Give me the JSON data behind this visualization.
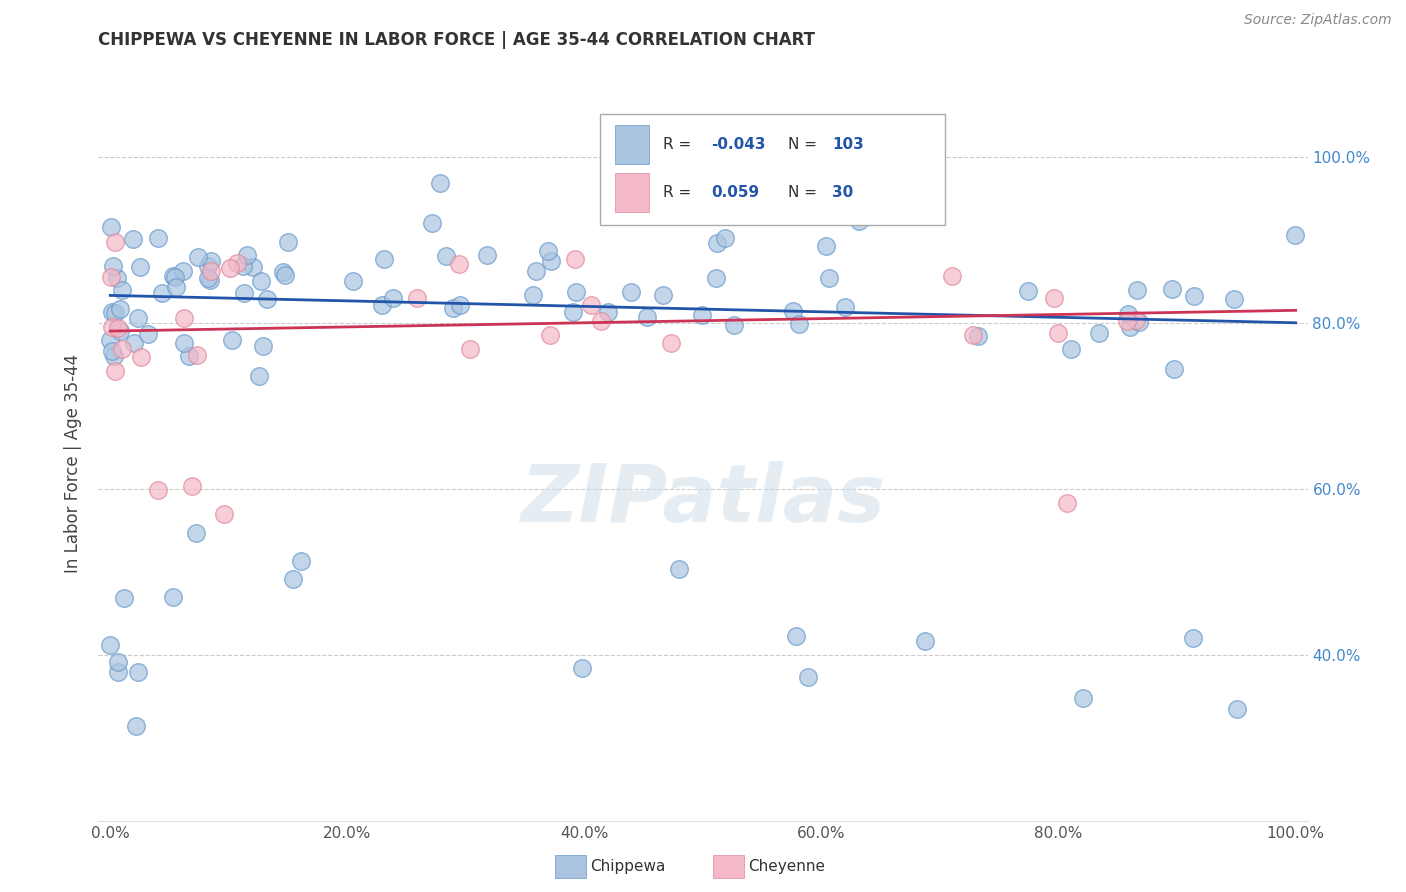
{
  "title": "CHIPPEWA VS CHEYENNE IN LABOR FORCE | AGE 35-44 CORRELATION CHART",
  "source": "Source: ZipAtlas.com",
  "ylabel": "In Labor Force | Age 35-44",
  "blue_color": "#aac4e0",
  "blue_edge_color": "#6699cc",
  "pink_color": "#f4b8c8",
  "pink_edge_color": "#e08898",
  "blue_line_color": "#2255aa",
  "pink_line_color": "#cc3355",
  "ytick_color": "#4488cc",
  "r_chippewa": -0.043,
  "n_chippewa": 103,
  "r_cheyenne": 0.059,
  "n_cheyenne": 30,
  "chip_trend_y0": 0.833,
  "chip_trend_y1": 0.8,
  "chey_trend_y0": 0.79,
  "chey_trend_y1": 0.815,
  "xlim": [
    -0.01,
    1.01
  ],
  "ylim": [
    0.2,
    1.06
  ],
  "xticks": [
    0.0,
    0.2,
    0.4,
    0.6,
    0.8,
    1.0
  ],
  "xtick_labels": [
    "0.0%",
    "20.0%",
    "40.0%",
    "60.0%",
    "80.0%",
    "100.0%"
  ],
  "yticks": [
    0.4,
    0.6,
    0.8,
    1.0
  ],
  "ytick_labels": [
    "40.0%",
    "60.0%",
    "80.0%",
    "100.0%"
  ]
}
